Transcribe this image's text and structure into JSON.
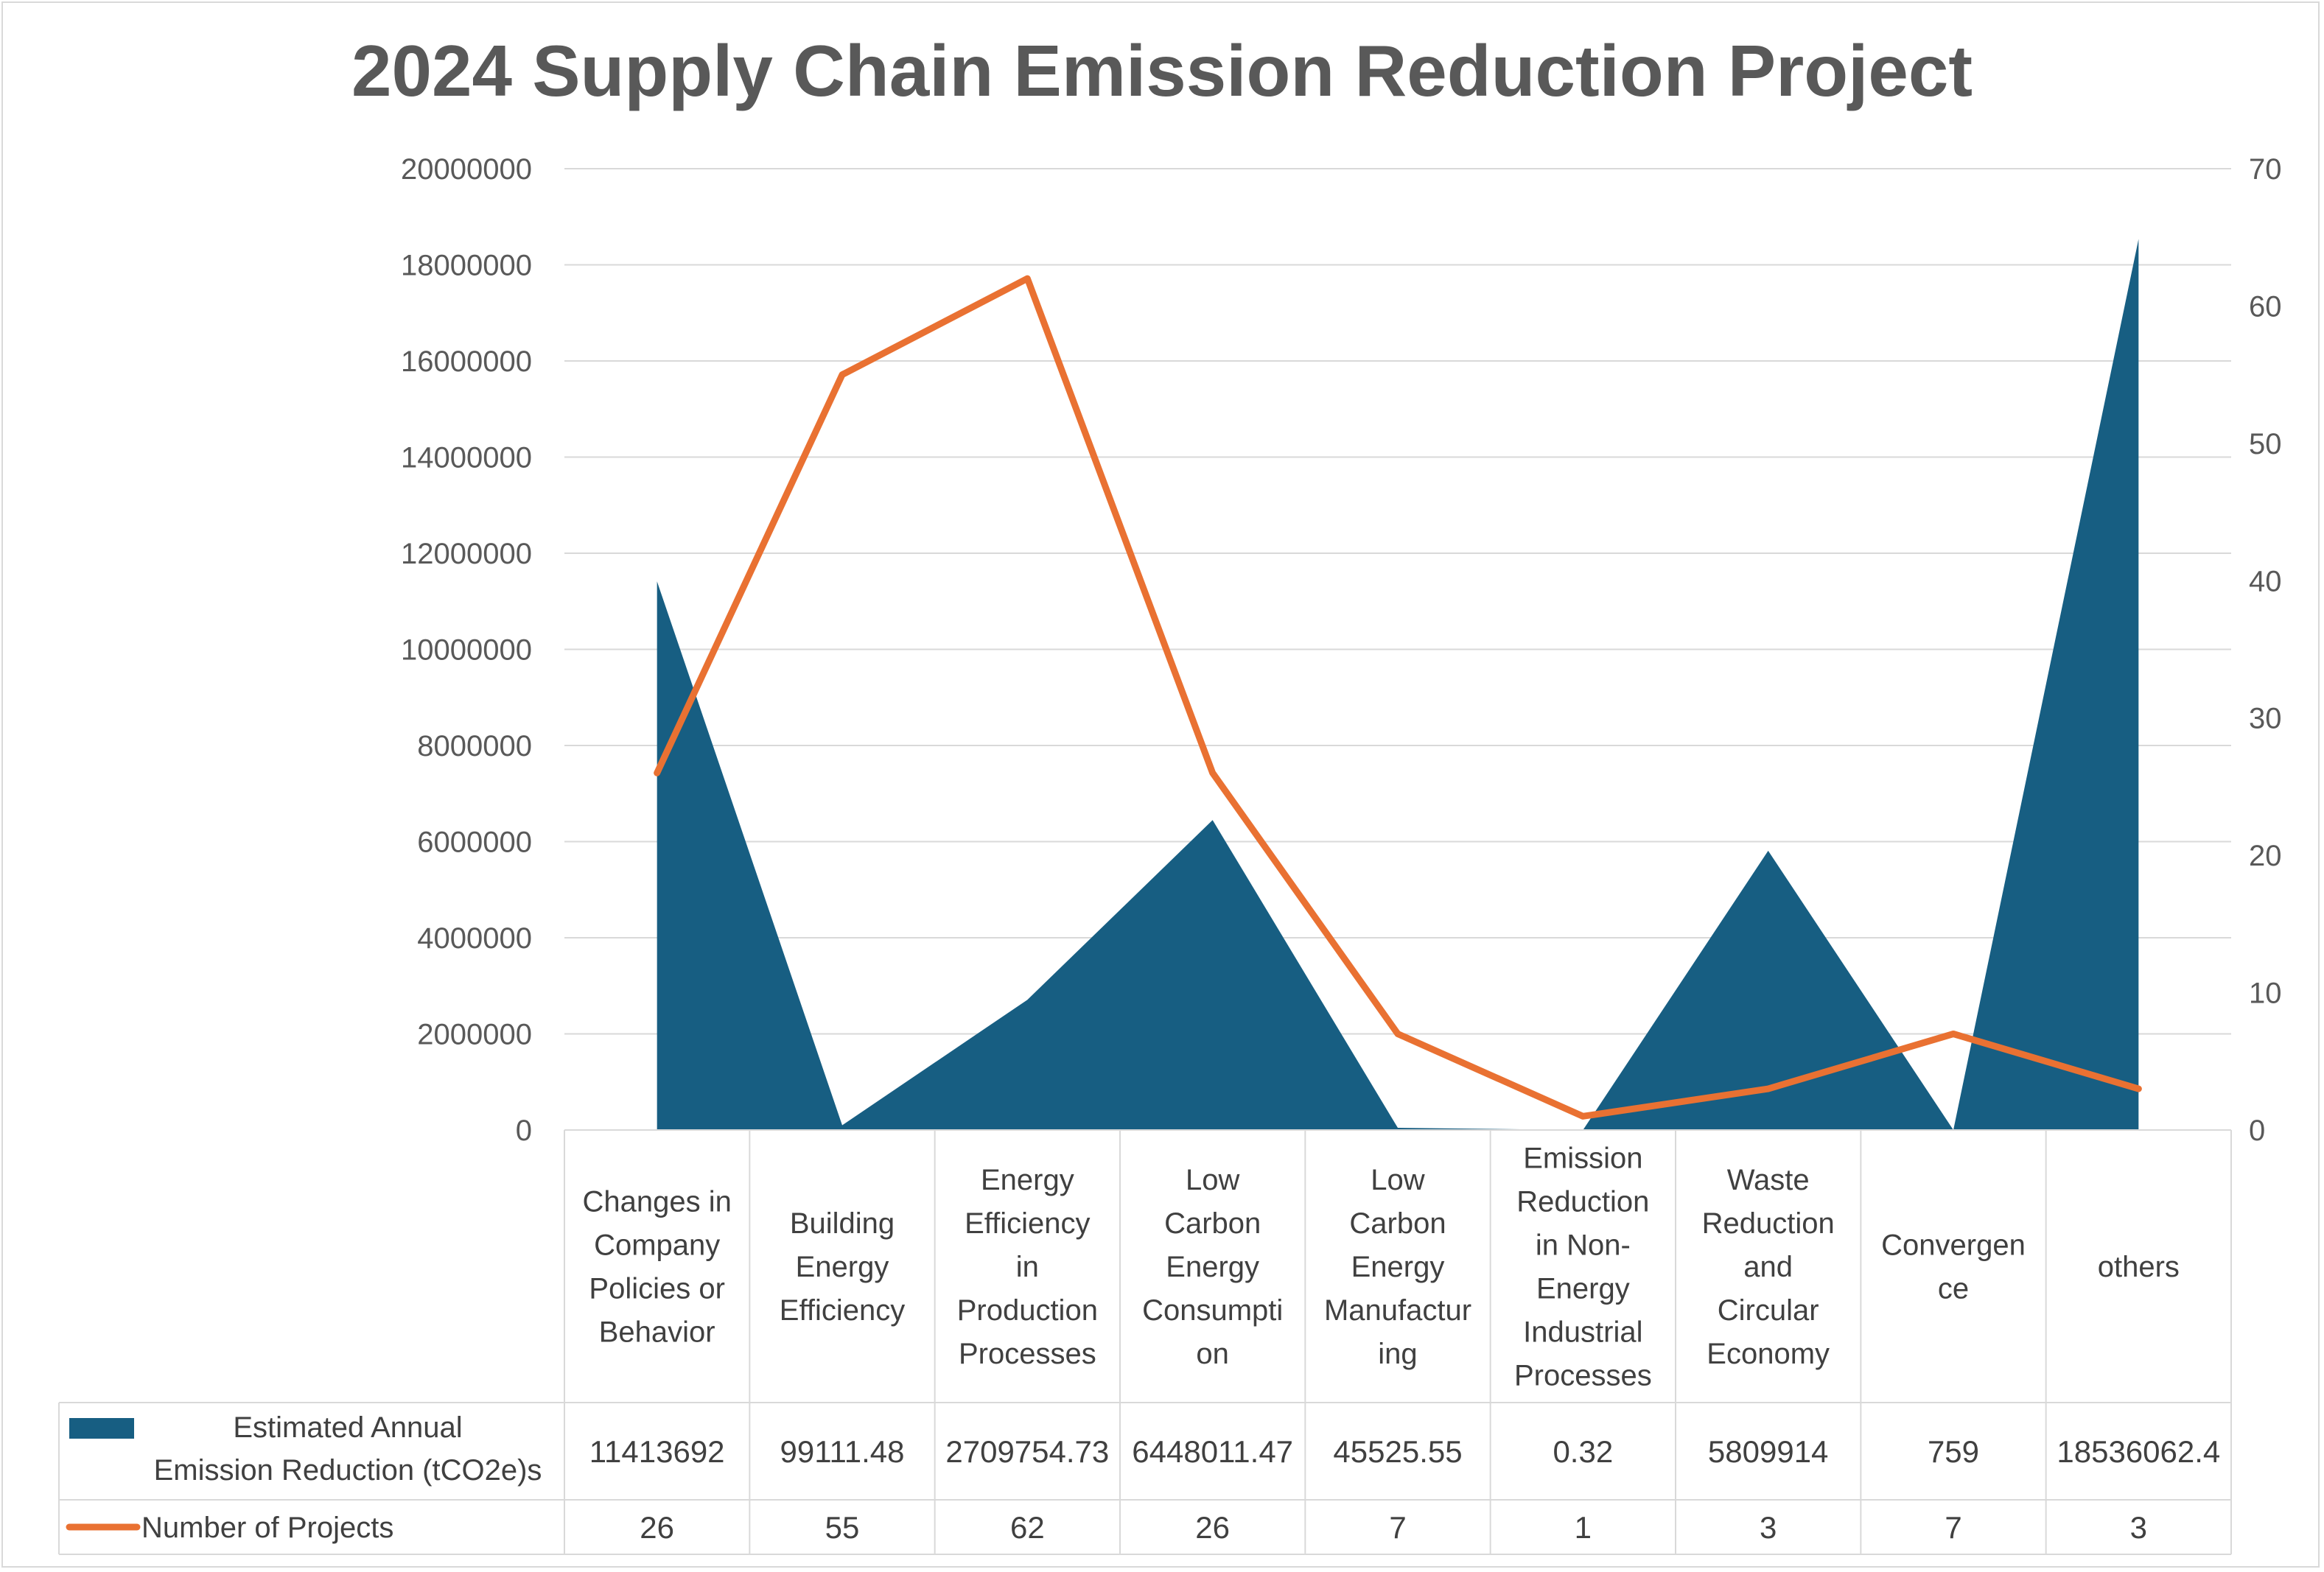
{
  "chart_data": {
    "type": "area",
    "title": "2024 Supply Chain Emission Reduction Project",
    "categories": [
      "Changes in Company Policies or Behavior",
      "Building Energy Efficiency",
      "Energy Efficiency in Production Processes",
      "Low Carbon Energy Consumption",
      "Low Carbon Energy Manufacturing",
      "Emission Reduction in Non-Energy Industrial Processes",
      "Waste Reduction and Circular Economy",
      "Convergence",
      "others"
    ],
    "category_lines": [
      [
        "Changes in",
        "Company",
        "Policies or",
        "Behavior"
      ],
      [
        "Building",
        "Energy",
        "Efficiency"
      ],
      [
        "Energy",
        "Efficiency",
        "in",
        "Production",
        "Processes"
      ],
      [
        "Low",
        "Carbon",
        "Energy",
        "Consumpti",
        "on"
      ],
      [
        "Low",
        "Carbon",
        "Energy",
        "Manufactur",
        "ing"
      ],
      [
        "Emission",
        "Reduction",
        "in Non-",
        "Energy",
        "Industrial",
        "Processes"
      ],
      [
        "Waste",
        "Reduction",
        "and",
        "Circular",
        "Economy"
      ],
      [
        "Convergen",
        "ce"
      ],
      [
        "others"
      ]
    ],
    "series": [
      {
        "name": "Estimated Annual Emission Reduction (tCO2e)s",
        "name_lines": [
          "Estimated Annual",
          "Emission Reduction (tCO2e)s"
        ],
        "type": "area",
        "axis": "left",
        "color": "#175e82",
        "values": [
          11413692,
          99111.48,
          2709754.73,
          6448011.47,
          45525.55,
          0.32,
          5809914,
          759,
          18536062.4
        ],
        "labels": [
          "11413692",
          "99111.48",
          "2709754.73",
          "6448011.47",
          "45525.55",
          "0.32",
          "5809914",
          "759",
          "18536062.4"
        ]
      },
      {
        "name": "Number of Projects",
        "type": "line",
        "axis": "right",
        "color": "#e97132",
        "values": [
          26,
          55,
          62,
          26,
          7,
          1,
          3,
          7,
          3
        ],
        "labels": [
          "26",
          "55",
          "62",
          "26",
          "7",
          "1",
          "3",
          "7",
          "3"
        ]
      }
    ],
    "y_left": {
      "range": [
        0,
        20000000
      ],
      "ticks": [
        "0",
        "2000000",
        "4000000",
        "6000000",
        "8000000",
        "10000000",
        "12000000",
        "14000000",
        "16000000",
        "18000000",
        "20000000"
      ]
    },
    "y_right": {
      "range": [
        0,
        70
      ],
      "ticks": [
        "0",
        "10",
        "20",
        "30",
        "40",
        "50",
        "60",
        "70"
      ]
    },
    "grid": true,
    "legend": "data table below chart"
  }
}
